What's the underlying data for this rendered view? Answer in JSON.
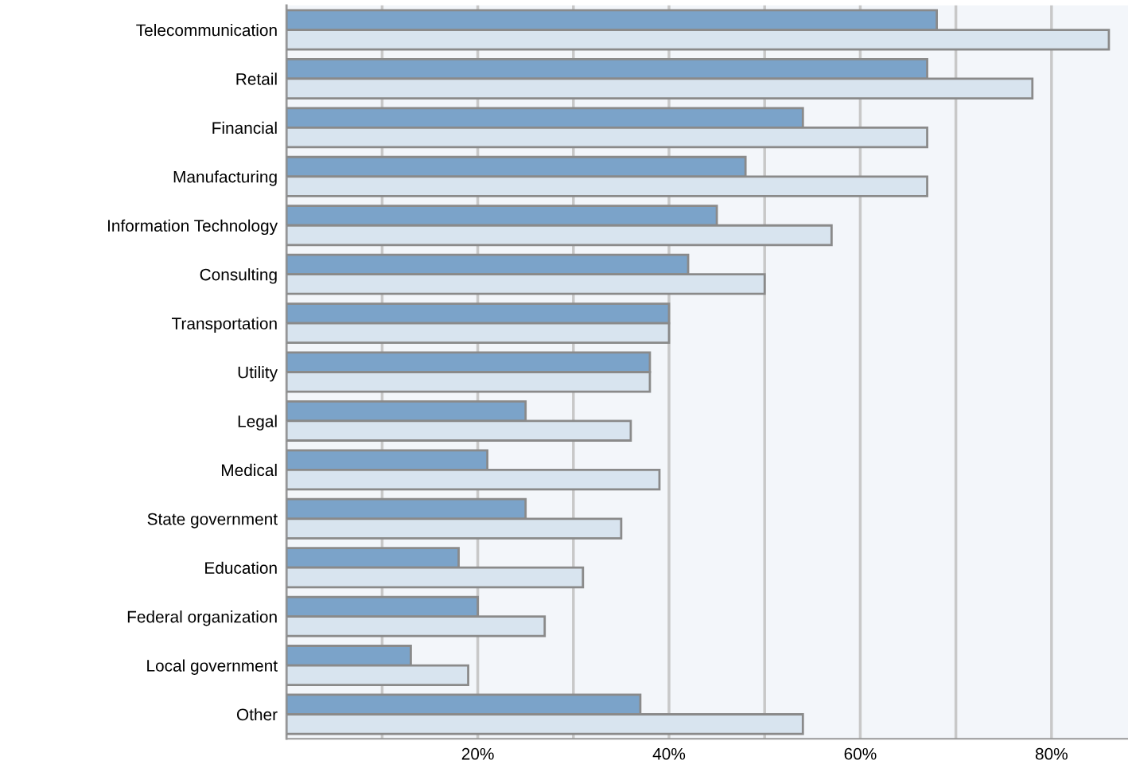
{
  "chart_data": {
    "type": "bar",
    "orientation": "horizontal",
    "categories": [
      "Telecommunication",
      "Retail",
      "Financial",
      "Manufacturing",
      "Information Technology",
      "Consulting",
      "Transportation",
      "Utility",
      "Legal",
      "Medical",
      "State government",
      "Education",
      "Federal organization",
      "Local government",
      "Other"
    ],
    "series": [
      {
        "color": "#7ba3c9",
        "values": [
          68,
          67,
          54,
          48,
          45,
          42,
          40,
          38,
          25,
          21,
          25,
          18,
          20,
          13,
          37
        ]
      },
      {
        "color": "#d8e4ef",
        "values": [
          86,
          78,
          67,
          67,
          57,
          50,
          40,
          38,
          36,
          39,
          35,
          31,
          27,
          19,
          54
        ]
      }
    ],
    "xlim": [
      0,
      88
    ],
    "xticks": [
      {
        "value": 10,
        "label": null
      },
      {
        "value": 20,
        "label": "20%"
      },
      {
        "value": 30,
        "label": null
      },
      {
        "value": 40,
        "label": "40%"
      },
      {
        "value": 50,
        "label": null
      },
      {
        "value": 60,
        "label": "60%"
      },
      {
        "value": 70,
        "label": null
      },
      {
        "value": 80,
        "label": "80%"
      }
    ],
    "grid": "x",
    "legend": false
  }
}
